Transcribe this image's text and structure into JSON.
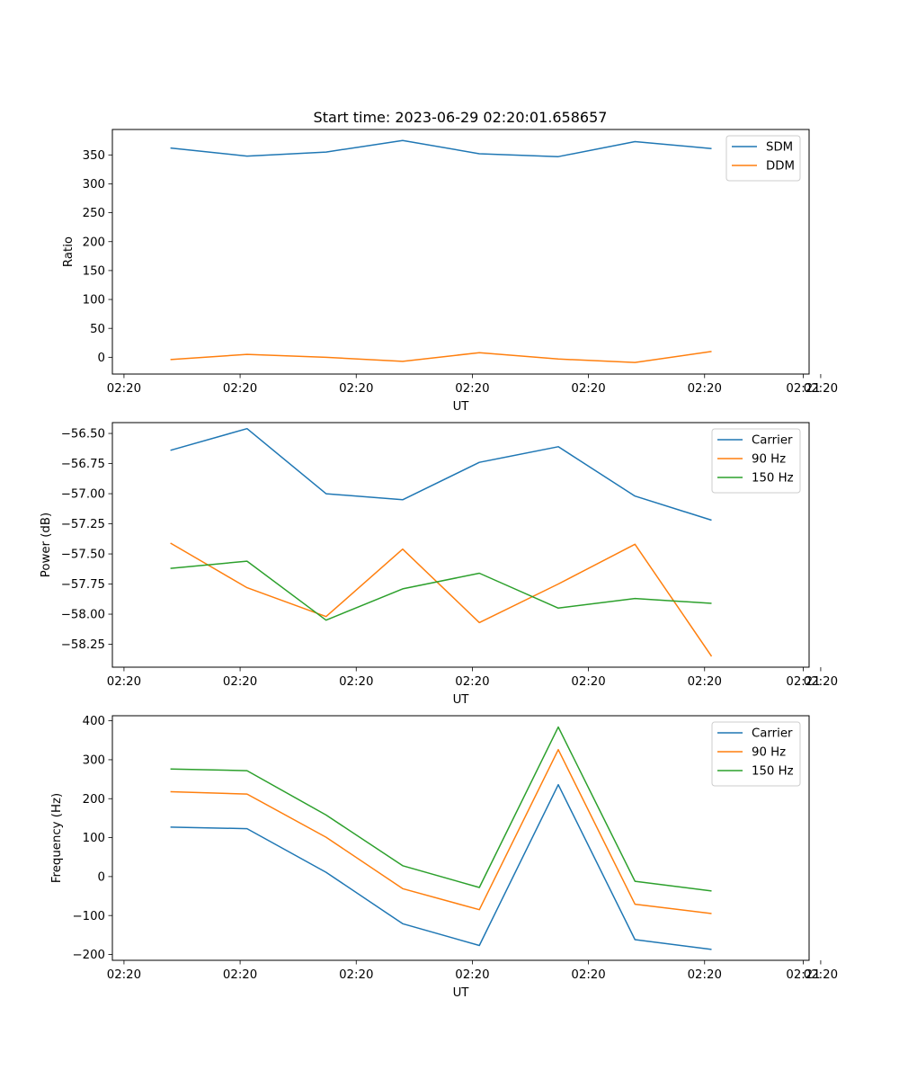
{
  "figure": {
    "title": "Start time: 2023-06-29 02:20:01.658657"
  },
  "chart_data": [
    {
      "type": "line",
      "title": "Start time: 2023-06-29 02:20:01.658657",
      "xlabel": "UT",
      "ylabel": "Ratio",
      "x_tick_labels": [
        "02:20",
        "02:20",
        "02:20",
        "02:20",
        "02:20",
        "02:20",
        "02:20"
      ],
      "x_last_tick_label": "02:21",
      "xlim": [
        0,
        3
      ],
      "x": [
        0.25,
        0.58,
        0.92,
        1.25,
        1.58,
        1.92,
        2.25,
        2.58
      ],
      "yticks": [
        0,
        50,
        100,
        150,
        200,
        250,
        300,
        350
      ],
      "ylim": [
        -29,
        394
      ],
      "legend_position": "top-right",
      "grid": false,
      "series": [
        {
          "name": "SDM",
          "color": "#1f77b4",
          "values": [
            362,
            348,
            355,
            375,
            352,
            347,
            373,
            361
          ]
        },
        {
          "name": "DDM",
          "color": "#ff7f0e",
          "values": [
            -4,
            5,
            0,
            -7,
            8,
            -3,
            -9,
            10
          ]
        }
      ]
    },
    {
      "type": "line",
      "xlabel": "UT",
      "ylabel": "Power (dB)",
      "x_tick_labels": [
        "02:20",
        "02:20",
        "02:20",
        "02:20",
        "02:20",
        "02:20",
        "02:20"
      ],
      "x_last_tick_label": "02:21",
      "xlim": [
        0,
        3
      ],
      "x": [
        0.25,
        0.58,
        0.92,
        1.25,
        1.58,
        1.92,
        2.25,
        2.58
      ],
      "yticks": [
        -58.25,
        -58.0,
        -57.75,
        -57.5,
        -57.25,
        -57.0,
        -56.75,
        -56.5
      ],
      "ytick_labels": [
        "−58.25",
        "−58.00",
        "−57.75",
        "−57.50",
        "−57.25",
        "−57.00",
        "−56.75",
        "−56.50"
      ],
      "ylim": [
        -58.44,
        -56.41
      ],
      "legend_position": "top-right",
      "grid": false,
      "series": [
        {
          "name": "Carrier",
          "color": "#1f77b4",
          "values": [
            -56.64,
            -56.46,
            -57.0,
            -57.05,
            -56.74,
            -56.61,
            -57.02,
            -57.22
          ]
        },
        {
          "name": "90 Hz",
          "color": "#ff7f0e",
          "values": [
            -57.41,
            -57.78,
            -58.02,
            -57.46,
            -58.07,
            -57.75,
            -57.42,
            -58.35
          ]
        },
        {
          "name": "150 Hz",
          "color": "#2ca02c",
          "values": [
            -57.62,
            -57.56,
            -58.05,
            -57.79,
            -57.66,
            -57.95,
            -57.87,
            -57.91
          ]
        }
      ]
    },
    {
      "type": "line",
      "xlabel": "UT",
      "ylabel": "Frequency (Hz)",
      "x_tick_labels": [
        "02:20",
        "02:20",
        "02:20",
        "02:20",
        "02:20",
        "02:20",
        "02:20"
      ],
      "x_last_tick_label": "02:21",
      "xlim": [
        0,
        3
      ],
      "x": [
        0.25,
        0.58,
        0.92,
        1.25,
        1.58,
        1.92,
        2.25,
        2.58
      ],
      "yticks": [
        -200,
        -100,
        0,
        100,
        200,
        300,
        400
      ],
      "ytick_labels": [
        "−200",
        "−100",
        "0",
        "100",
        "200",
        "300",
        "400"
      ],
      "ylim": [
        -215,
        413
      ],
      "legend_position": "top-right",
      "grid": false,
      "series": [
        {
          "name": "Carrier",
          "color": "#1f77b4",
          "values": [
            127,
            123,
            11,
            -121,
            -177,
            236,
            -162,
            -187
          ]
        },
        {
          "name": "90 Hz",
          "color": "#ff7f0e",
          "values": [
            218,
            212,
            101,
            -31,
            -85,
            326,
            -71,
            -95
          ]
        },
        {
          "name": "150 Hz",
          "color": "#2ca02c",
          "values": [
            276,
            272,
            158,
            28,
            -28,
            384,
            -12,
            -37
          ]
        }
      ]
    }
  ]
}
